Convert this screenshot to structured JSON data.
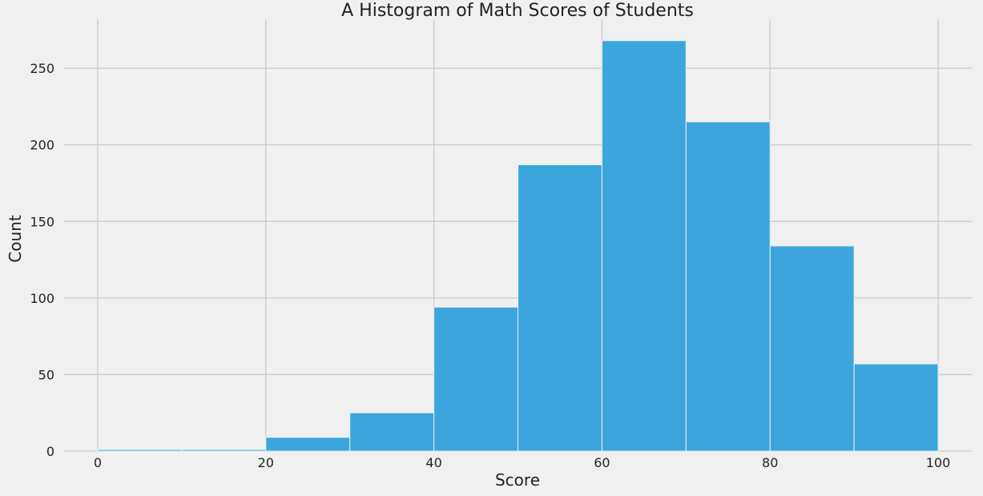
{
  "chart_data": {
    "type": "bar",
    "title": "A Histogram of Math Scores of Students",
    "xlabel": "Score",
    "ylabel": "Count",
    "bin_edges": [
      0,
      10,
      20,
      30,
      40,
      50,
      60,
      70,
      80,
      90,
      100
    ],
    "values": [
      1,
      1,
      9,
      25,
      94,
      187,
      268,
      215,
      134,
      57
    ],
    "xlim": [
      -4,
      104
    ],
    "ylim": [
      0,
      282
    ],
    "x_ticks": [
      0,
      20,
      40,
      60,
      80,
      100
    ],
    "y_ticks": [
      0,
      50,
      100,
      150,
      200,
      250
    ],
    "grid": true,
    "bar_color": "#3ca6dc",
    "bar_edge_color": "#e8f2f8",
    "background_color": "#f0f0f0",
    "grid_color": "#cbcbcb"
  }
}
